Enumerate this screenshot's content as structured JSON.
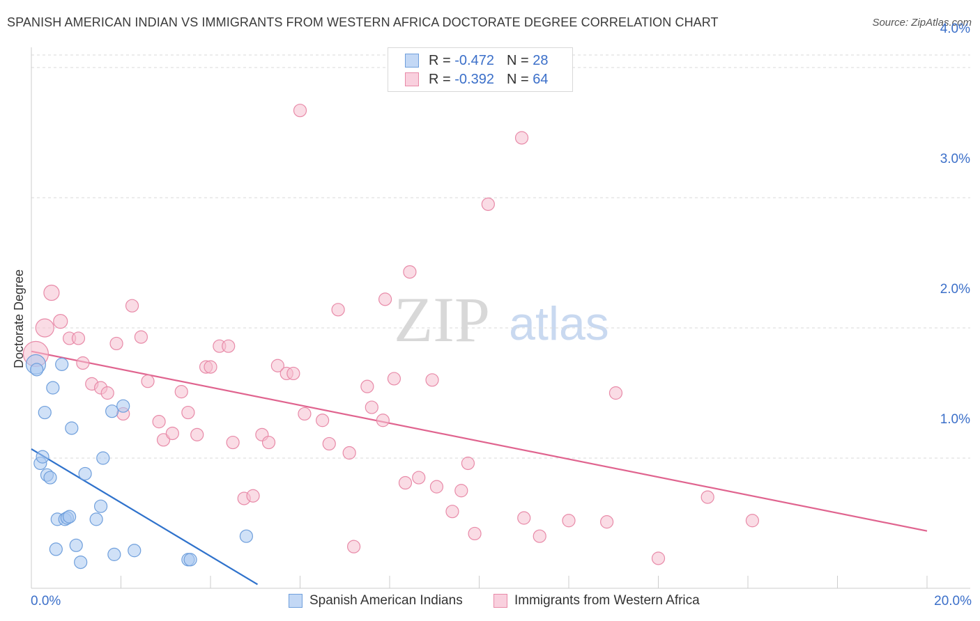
{
  "title": "SPANISH AMERICAN INDIAN VS IMMIGRANTS FROM WESTERN AFRICA DOCTORATE DEGREE CORRELATION CHART",
  "source": "Source: ZipAtlas.com",
  "watermark": {
    "zip": "ZIP",
    "atlas": "atlas"
  },
  "legend": {
    "series1": {
      "r_label": "R =",
      "r_value": "-0.472",
      "n_label": "N =",
      "n_value": "28"
    },
    "series2": {
      "r_label": "R =",
      "r_value": "-0.392",
      "n_label": "N =",
      "n_value": "64"
    }
  },
  "colors": {
    "blue_fill": "#a9c8f0",
    "blue_stroke": "#6f9fdc",
    "blue_line": "#2f72cc",
    "pink_fill": "#f6bfd0",
    "pink_stroke": "#e88aa8",
    "pink_line": "#e0648f",
    "tick_label": "#3b6fc9",
    "grid": "#d9d9d9"
  },
  "chart_data": {
    "type": "scatter",
    "title": "SPANISH AMERICAN INDIAN VS IMMIGRANTS FROM WESTERN AFRICA DOCTORATE DEGREE CORRELATION CHART",
    "xlabel": "",
    "ylabel": "Doctorate Degree",
    "xlim": [
      0,
      20
    ],
    "ylim": [
      0,
      4.1
    ],
    "x_tick_labels": [
      "0.0%",
      "20.0%"
    ],
    "y_ticks": [
      1,
      2,
      3,
      4
    ],
    "y_tick_labels": [
      "1.0%",
      "2.0%",
      "3.0%",
      "4.0%"
    ],
    "grid": "horizontal dashed",
    "legend_position": "top-center",
    "series": [
      {
        "name": "Spanish American Indians",
        "color": "#a9c8f0",
        "points": [
          [
            0.1,
            1.72,
            14
          ],
          [
            0.12,
            1.68,
            9
          ],
          [
            0.2,
            0.96,
            9
          ],
          [
            0.25,
            1.01,
            9
          ],
          [
            0.3,
            1.35,
            9
          ],
          [
            0.35,
            0.87,
            9
          ],
          [
            0.42,
            0.85,
            9
          ],
          [
            0.48,
            1.54,
            9
          ],
          [
            0.55,
            0.3,
            9
          ],
          [
            0.58,
            0.53,
            9
          ],
          [
            0.68,
            1.72,
            9
          ],
          [
            0.75,
            0.53,
            9
          ],
          [
            0.8,
            0.54,
            9
          ],
          [
            0.85,
            0.55,
            9
          ],
          [
            0.9,
            1.23,
            9
          ],
          [
            1.0,
            0.33,
            9
          ],
          [
            1.1,
            0.2,
            9
          ],
          [
            1.2,
            0.88,
            9
          ],
          [
            1.45,
            0.53,
            9
          ],
          [
            1.55,
            0.63,
            9
          ],
          [
            1.6,
            1.0,
            9
          ],
          [
            1.8,
            1.36,
            9
          ],
          [
            1.85,
            0.26,
            9
          ],
          [
            2.05,
            1.4,
            9
          ],
          [
            2.3,
            0.29,
            9
          ],
          [
            3.5,
            0.22,
            9
          ],
          [
            3.55,
            0.22,
            9
          ],
          [
            4.8,
            0.4,
            9
          ]
        ],
        "trend": {
          "x": [
            0.0,
            5.05
          ],
          "y": [
            1.07,
            0.03
          ]
        }
      },
      {
        "name": "Immigrants from Western Africa",
        "color": "#f6bfd0",
        "points": [
          [
            0.1,
            1.8,
            18
          ],
          [
            0.3,
            2.0,
            13
          ],
          [
            0.45,
            2.27,
            11
          ],
          [
            0.65,
            2.05,
            10
          ],
          [
            0.85,
            1.92,
            9
          ],
          [
            1.05,
            1.92,
            9
          ],
          [
            1.15,
            1.73,
            9
          ],
          [
            1.35,
            1.57,
            9
          ],
          [
            1.55,
            1.54,
            9
          ],
          [
            1.7,
            1.5,
            9
          ],
          [
            1.9,
            1.88,
            9
          ],
          [
            2.05,
            1.34,
            9
          ],
          [
            2.25,
            2.17,
            9
          ],
          [
            2.45,
            1.93,
            9
          ],
          [
            2.6,
            1.59,
            9
          ],
          [
            2.85,
            1.28,
            9
          ],
          [
            2.95,
            1.14,
            9
          ],
          [
            3.15,
            1.19,
            9
          ],
          [
            3.35,
            1.51,
            9
          ],
          [
            3.5,
            1.35,
            9
          ],
          [
            3.7,
            1.18,
            9
          ],
          [
            3.9,
            1.7,
            9
          ],
          [
            4.0,
            1.7,
            9
          ],
          [
            4.2,
            1.86,
            9
          ],
          [
            4.4,
            1.86,
            9
          ],
          [
            4.5,
            1.12,
            9
          ],
          [
            4.75,
            0.69,
            9
          ],
          [
            4.95,
            0.71,
            9
          ],
          [
            5.15,
            1.18,
            9
          ],
          [
            5.3,
            1.12,
            9
          ],
          [
            5.5,
            1.71,
            9
          ],
          [
            5.7,
            1.65,
            9
          ],
          [
            5.85,
            1.65,
            9
          ],
          [
            6.1,
            1.34,
            9
          ],
          [
            6.5,
            1.29,
            9
          ],
          [
            6.65,
            1.11,
            9
          ],
          [
            6.85,
            2.14,
            9
          ],
          [
            7.1,
            1.04,
            9
          ],
          [
            7.2,
            0.32,
            9
          ],
          [
            7.5,
            1.55,
            9
          ],
          [
            7.6,
            1.39,
            9
          ],
          [
            7.85,
            1.29,
            9
          ],
          [
            7.9,
            2.22,
            9
          ],
          [
            8.1,
            1.61,
            9
          ],
          [
            8.35,
            0.81,
            9
          ],
          [
            8.45,
            2.43,
            9
          ],
          [
            8.65,
            0.85,
            9
          ],
          [
            8.95,
            1.6,
            9
          ],
          [
            9.05,
            0.78,
            9
          ],
          [
            9.4,
            0.59,
            9
          ],
          [
            9.6,
            0.75,
            9
          ],
          [
            9.75,
            0.96,
            9
          ],
          [
            9.9,
            0.42,
            9
          ],
          [
            6.0,
            3.67,
            9
          ],
          [
            10.2,
            2.95,
            9
          ],
          [
            10.95,
            3.46,
            9
          ],
          [
            11.0,
            0.54,
            9
          ],
          [
            11.35,
            0.4,
            9
          ],
          [
            12.0,
            0.52,
            9
          ],
          [
            12.85,
            0.51,
            9
          ],
          [
            13.05,
            1.5,
            9
          ],
          [
            14.0,
            0.23,
            9
          ],
          [
            15.1,
            0.7,
            9
          ],
          [
            16.1,
            0.52,
            9
          ]
        ],
        "trend": {
          "x": [
            0.0,
            20.0
          ],
          "y": [
            1.82,
            0.44
          ]
        }
      }
    ]
  }
}
